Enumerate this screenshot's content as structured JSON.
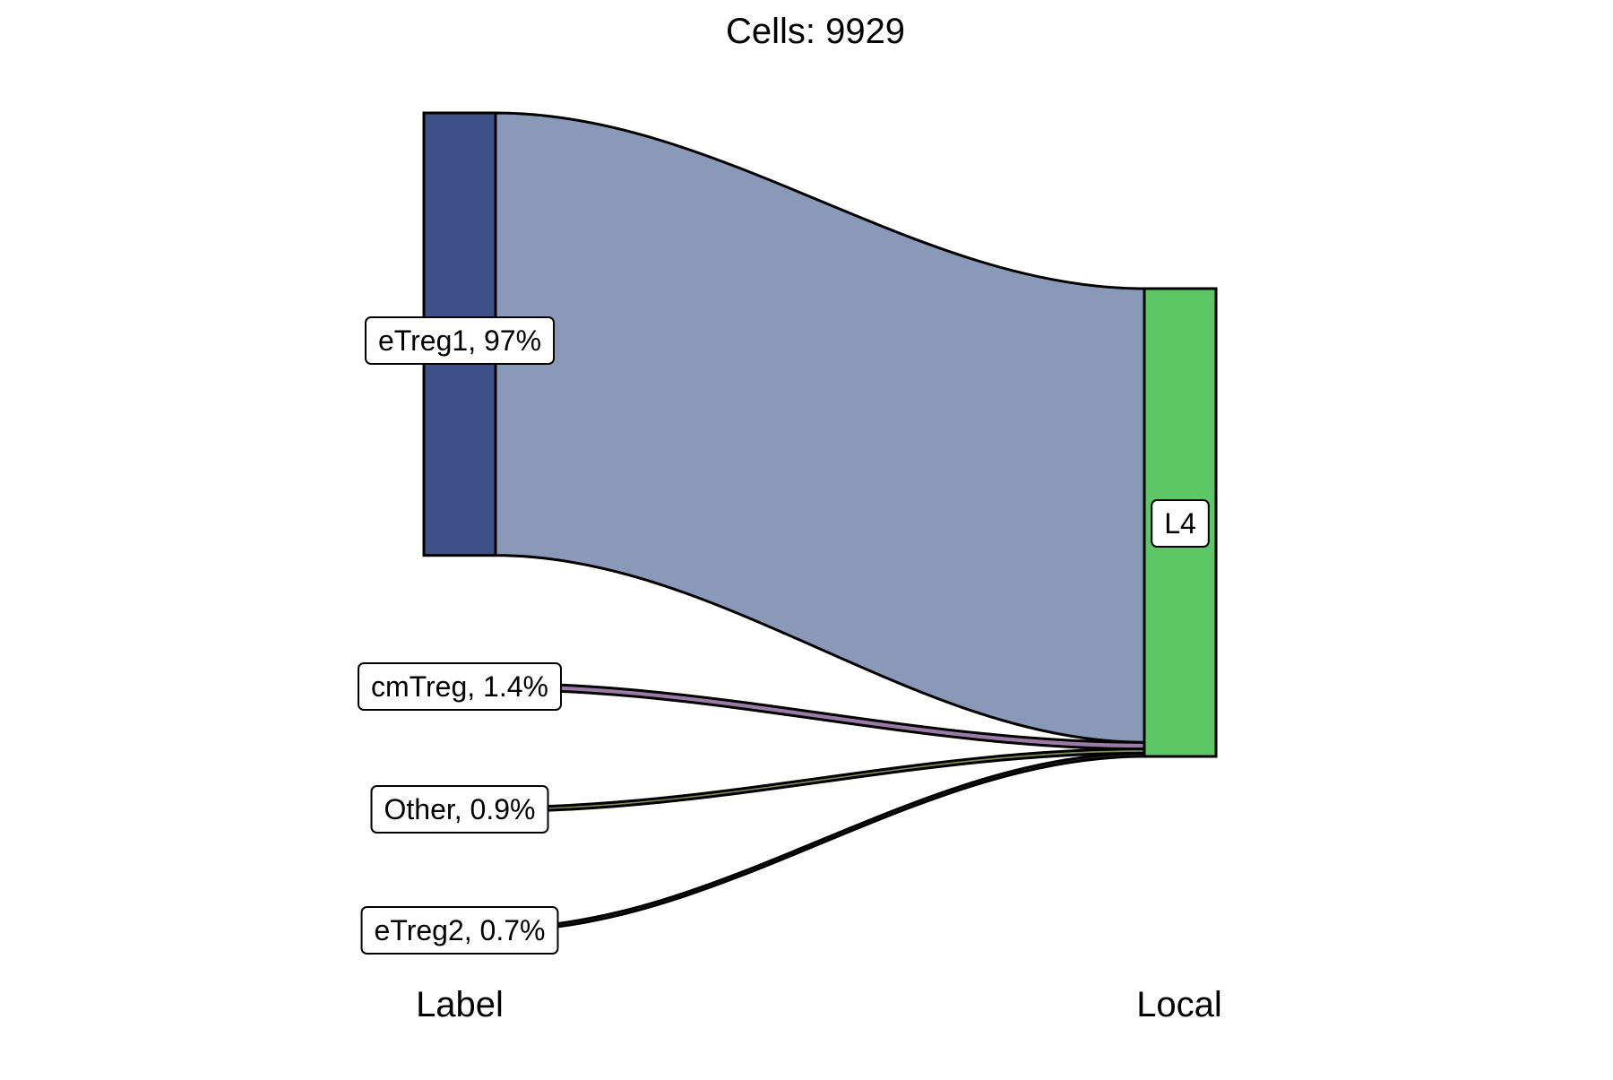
{
  "chart_data": {
    "type": "sankey",
    "title": "Cells:  9929",
    "axes": [
      "Label",
      "Local"
    ],
    "total": 9929,
    "left_nodes": [
      {
        "name": "eTreg1",
        "label": "eTreg1, 97%",
        "percent": 97,
        "color": "#3d5188",
        "flow_color": "#8a99b8"
      },
      {
        "name": "cmTreg",
        "label": "cmTreg, 1.4%",
        "percent": 1.4,
        "color": "#8b5e94",
        "flow_color": "#9a7aa6"
      },
      {
        "name": "Other",
        "label": "Other, 0.9%",
        "percent": 0.9,
        "color": "#6b7f3e",
        "flow_color": "#7c8c55"
      },
      {
        "name": "eTreg2",
        "label": "eTreg2, 0.7%",
        "percent": 0.7,
        "color": "#222222",
        "flow_color": "#333333"
      }
    ],
    "right_nodes": [
      {
        "name": "L4",
        "label": "L4",
        "percent": 100,
        "color": "#5ec765"
      }
    ],
    "flows": [
      {
        "from": "eTreg1",
        "to": "L4",
        "percent": 97
      },
      {
        "from": "cmTreg",
        "to": "L4",
        "percent": 1.4
      },
      {
        "from": "Other",
        "to": "L4",
        "percent": 0.9
      },
      {
        "from": "eTreg2",
        "to": "L4",
        "percent": 0.7
      }
    ]
  }
}
